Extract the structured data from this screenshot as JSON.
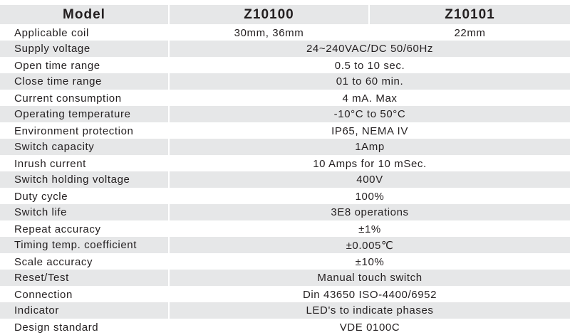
{
  "header": {
    "label": "Model",
    "models": [
      "Z10100",
      "Z10101"
    ]
  },
  "rows": [
    {
      "label": "Applicable coil",
      "values": [
        "30mm, 36mm",
        "22mm"
      ]
    },
    {
      "label": "Supply voltage",
      "value": "24~240VAC/DC  50/60Hz"
    },
    {
      "label": "Open time range",
      "value": "0.5 to 10 sec."
    },
    {
      "label": "Close time range",
      "value": "01 to 60 min."
    },
    {
      "label": "Current consumption",
      "value": "4 mA. Max"
    },
    {
      "label": "Operating temperature",
      "value": "-10°C to 50°C"
    },
    {
      "label": "Environment protection",
      "value": "IP65, NEMA IV"
    },
    {
      "label": "Switch capacity",
      "value": "1Amp"
    },
    {
      "label": "Inrush current",
      "value": "10 Amps for 10 mSec."
    },
    {
      "label": "Switch holding voltage",
      "value": "400V"
    },
    {
      "label": "Duty cycle",
      "value": "100%"
    },
    {
      "label": "Switch life",
      "value": "3E8 operations"
    },
    {
      "label": "Repeat accuracy",
      "value": "±1%"
    },
    {
      "label": "Timing temp. coefficient",
      "value": "±0.005℃"
    },
    {
      "label": "Scale accuracy",
      "value": "±10%"
    },
    {
      "label": "Reset/Test",
      "value": "Manual touch switch"
    },
    {
      "label": "Connection",
      "value": "Din 43650 ISO-4400/6952"
    },
    {
      "label": "Indicator",
      "value": "LED's to indicate phases"
    },
    {
      "label": "Design standard",
      "value": "VDE 0100C"
    }
  ],
  "colors": {
    "stripe": "#e6e7e8",
    "text": "#231f20",
    "background": "#ffffff"
  }
}
